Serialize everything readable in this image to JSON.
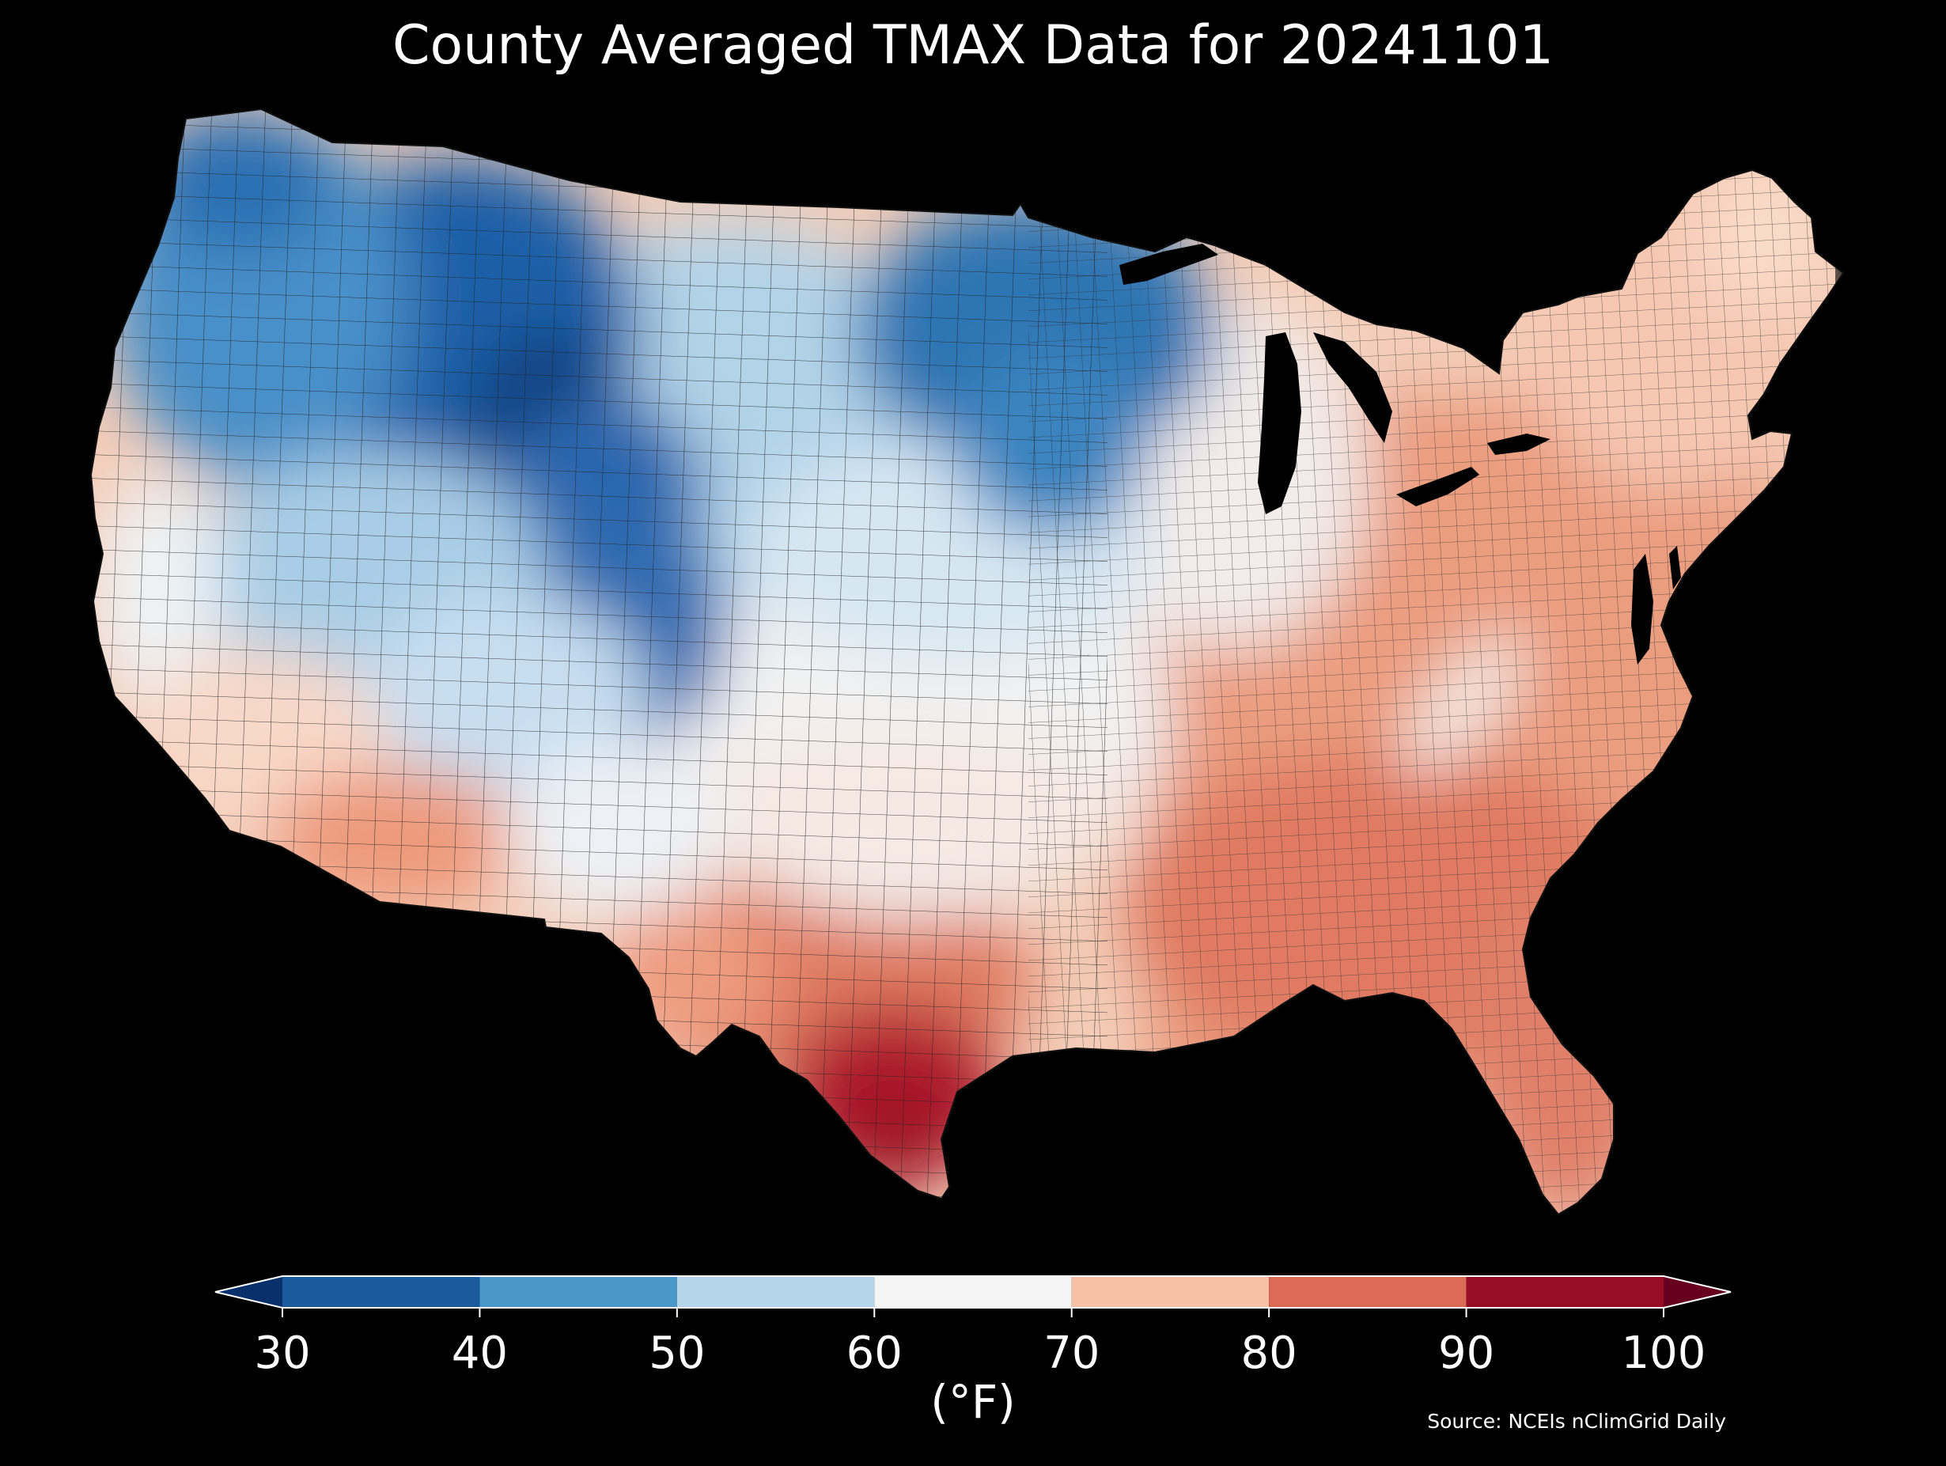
{
  "title": "County Averaged TMAX Data for 20241101",
  "source": "Source: NCEIs nClimGrid Daily",
  "colorbar": {
    "unit_label": "(°F)",
    "ticks": [
      "30",
      "40",
      "50",
      "60",
      "70",
      "80",
      "90",
      "100"
    ],
    "bins": [
      {
        "from": 30,
        "to": 40,
        "color": "#1b5a9c"
      },
      {
        "from": 40,
        "to": 50,
        "color": "#4a98c9"
      },
      {
        "from": 50,
        "to": 60,
        "color": "#b5d6ea"
      },
      {
        "from": 60,
        "to": 70,
        "color": "#f5f5f5"
      },
      {
        "from": 70,
        "to": 80,
        "color": "#f8c1a6"
      },
      {
        "from": 80,
        "to": 90,
        "color": "#dc6b55"
      },
      {
        "from": 90,
        "to": 100,
        "color": "#970d24"
      }
    ],
    "under_color": "#08306b",
    "over_color": "#67001f",
    "extend": "both"
  },
  "map": {
    "region": "Contiguous United States",
    "unit": "°F",
    "variable": "TMAX",
    "date": "20241101",
    "regional_values": [
      {
        "region": "Pacific Northwest",
        "value": 46
      },
      {
        "region": "Idaho / Montana Rockies",
        "value": 38
      },
      {
        "region": "Western Wyoming",
        "value": 31
      },
      {
        "region": "Colorado Rockies",
        "value": 37
      },
      {
        "region": "Northern Plains",
        "value": 53
      },
      {
        "region": "Minnesota / Wisconsin",
        "value": 44
      },
      {
        "region": "Great Basin",
        "value": 55
      },
      {
        "region": "Central California",
        "value": 64
      },
      {
        "region": "Southern California",
        "value": 73
      },
      {
        "region": "Southern Arizona",
        "value": 80
      },
      {
        "region": "New Mexico",
        "value": 63
      },
      {
        "region": "Central Plains",
        "value": 60
      },
      {
        "region": "Great Lakes",
        "value": 66
      },
      {
        "region": "Northeast",
        "value": 75
      },
      {
        "region": "Mid-Atlantic",
        "value": 79
      },
      {
        "region": "Southeast",
        "value": 83
      },
      {
        "region": "Florida",
        "value": 85
      },
      {
        "region": "South Texas",
        "value": 93
      }
    ]
  },
  "colors": {
    "background": "#000000",
    "text": "#ffffff",
    "county_border": "#222222",
    "water": "#000000"
  }
}
